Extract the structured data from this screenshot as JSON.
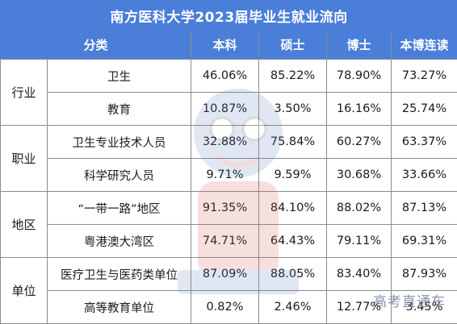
{
  "title": "南方医科大学2023届毕业生就业流向",
  "headers": {
    "category": "分类",
    "bachelor": "本科",
    "master": "硕士",
    "doctor": "博士",
    "combined": "本博连读"
  },
  "groups": [
    {
      "name": "行业",
      "rows": [
        {
          "label": "卫生",
          "values": [
            "46.06%",
            "85.22%",
            "78.90%",
            "73.27%"
          ]
        },
        {
          "label": "教育",
          "values": [
            "10.87%",
            "3.50%",
            "16.16%",
            "25.74%"
          ]
        }
      ]
    },
    {
      "name": "职业",
      "rows": [
        {
          "label": "卫生专业技术人员",
          "values": [
            "32.88%",
            "75.84%",
            "60.27%",
            "63.37%"
          ]
        },
        {
          "label": "科学研究人员",
          "values": [
            "9.71%",
            "9.59%",
            "30.68%",
            "33.66%"
          ]
        }
      ]
    },
    {
      "name": "地区",
      "rows": [
        {
          "label": "“一带一路”地区",
          "values": [
            "91.35%",
            "84.10%",
            "88.02%",
            "87.13%"
          ]
        },
        {
          "label": "粤港澳大湾区",
          "values": [
            "74.71%",
            "64.43%",
            "79.11%",
            "69.31%"
          ]
        }
      ]
    },
    {
      "name": "单位",
      "rows": [
        {
          "label": "医疗卫生与医药类单位",
          "values": [
            "87.09%",
            "88.05%",
            "83.40%",
            "87.93%"
          ]
        },
        {
          "label": "高等教育单位",
          "values": [
            "0.82%",
            "2.46%",
            "12.77%",
            "3.45%"
          ]
        }
      ]
    }
  ],
  "watermark": "高考直通车"
}
